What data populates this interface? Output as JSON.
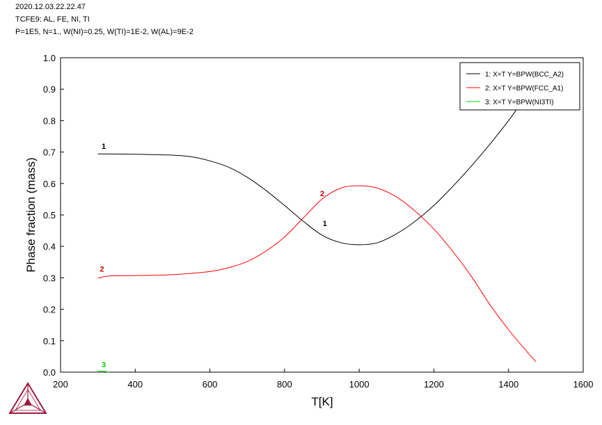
{
  "header": {
    "line1": "2020.12.03.22.22.47",
    "line2": "TCFE9: AL, FE, NI, TI",
    "line3": "P=1E5, N=1., W(NI)=0.25, W(TI)=1E-2, W(AL)=9E-2"
  },
  "chart_data": {
    "type": "line",
    "xlabel": "T[K]",
    "ylabel": "Phase fraction (mass)",
    "xlim": [
      200,
      1600
    ],
    "ylim": [
      0.0,
      1.0
    ],
    "xticks": [
      "200",
      "400",
      "600",
      "800",
      "1000",
      "1200",
      "1400",
      "1600"
    ],
    "yticks": [
      "0.0",
      "0.1",
      "0.2",
      "0.3",
      "0.4",
      "0.5",
      "0.6",
      "0.7",
      "0.8",
      "0.9",
      "1.0"
    ],
    "legend_position": "top-right",
    "series": [
      {
        "name": "1:  X=T  Y=BPW(BCC_A2)",
        "label": "1",
        "color": "#000000",
        "points": [
          [
            300,
            0.694
          ],
          [
            400,
            0.693
          ],
          [
            500,
            0.69
          ],
          [
            550,
            0.685
          ],
          [
            600,
            0.672
          ],
          [
            650,
            0.652
          ],
          [
            700,
            0.62
          ],
          [
            750,
            0.578
          ],
          [
            800,
            0.53
          ],
          [
            850,
            0.48
          ],
          [
            900,
            0.436
          ],
          [
            950,
            0.412
          ],
          [
            1000,
            0.405
          ],
          [
            1050,
            0.412
          ],
          [
            1100,
            0.44
          ],
          [
            1150,
            0.48
          ],
          [
            1200,
            0.53
          ],
          [
            1250,
            0.59
          ],
          [
            1300,
            0.655
          ],
          [
            1350,
            0.725
          ],
          [
            1400,
            0.8
          ],
          [
            1430,
            0.85
          ],
          [
            1440,
            0.87
          ]
        ]
      },
      {
        "name": "2:  X=T  Y=BPW(FCC_A1)",
        "label": "2",
        "color": "#ff0000",
        "points": [
          [
            300,
            0.299
          ],
          [
            330,
            0.306
          ],
          [
            400,
            0.307
          ],
          [
            500,
            0.31
          ],
          [
            600,
            0.32
          ],
          [
            650,
            0.332
          ],
          [
            700,
            0.352
          ],
          [
            750,
            0.385
          ],
          [
            800,
            0.43
          ],
          [
            850,
            0.49
          ],
          [
            900,
            0.55
          ],
          [
            950,
            0.585
          ],
          [
            1000,
            0.593
          ],
          [
            1050,
            0.585
          ],
          [
            1100,
            0.557
          ],
          [
            1150,
            0.512
          ],
          [
            1200,
            0.455
          ],
          [
            1250,
            0.385
          ],
          [
            1300,
            0.305
          ],
          [
            1350,
            0.215
          ],
          [
            1400,
            0.135
          ],
          [
            1440,
            0.078
          ],
          [
            1473,
            0.033
          ]
        ]
      },
      {
        "name": "3:  X=T  Y=BPW(NI3TI)",
        "label": "3",
        "color": "#00dd00",
        "points": [
          [
            300,
            0.003
          ],
          [
            315,
            0.003
          ],
          [
            330,
            0.0
          ]
        ]
      }
    ],
    "curve_labels": [
      {
        "text": "1",
        "color": "#000000",
        "x": 310,
        "y": 0.71
      },
      {
        "text": "1",
        "color": "#000000",
        "x": 902,
        "y": 0.465
      },
      {
        "text": "2",
        "color": "#cc0000",
        "x": 305,
        "y": 0.32
      },
      {
        "text": "2",
        "color": "#cc0000",
        "x": 895,
        "y": 0.56
      },
      {
        "text": "3",
        "color": "#00cc00",
        "x": 310,
        "y": 0.015
      }
    ]
  }
}
